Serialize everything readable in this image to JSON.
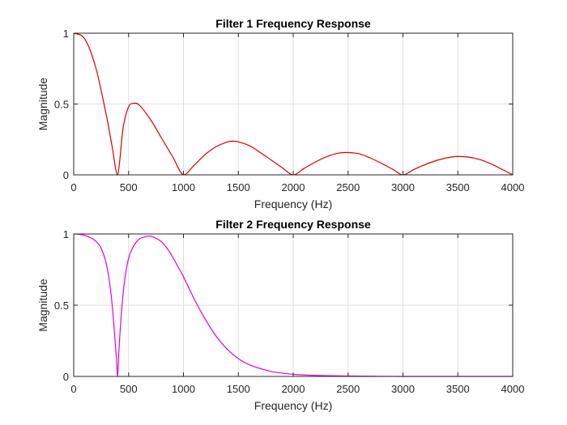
{
  "chart_data": [
    {
      "type": "line",
      "title": "Filter 1 Frequency Response",
      "xlabel": "Frequency (Hz)",
      "ylabel": "Magnitude",
      "xlim": [
        0,
        4000
      ],
      "ylim": [
        0,
        1
      ],
      "xticks": [
        0,
        500,
        1000,
        1500,
        2000,
        2500,
        3000,
        3500,
        4000
      ],
      "yticks": [
        0,
        0.5,
        1
      ],
      "ytick_labels": [
        "0",
        "0.5",
        "1"
      ],
      "grid": true,
      "series": [
        {
          "name": "Filter 1",
          "color": "#e00000",
          "x": [
            0,
            100,
            200,
            300,
            350,
            400,
            450,
            500,
            550,
            600,
            700,
            800,
            900,
            1000,
            1100,
            1200,
            1300,
            1400,
            1450,
            1500,
            1600,
            1700,
            1800,
            1900,
            2000,
            2100,
            2200,
            2300,
            2400,
            2480,
            2600,
            2700,
            2800,
            2900,
            3000,
            3100,
            3200,
            3300,
            3400,
            3500,
            3600,
            3700,
            3800,
            3900,
            4000
          ],
          "y": [
            1.0,
            0.96,
            0.76,
            0.41,
            0.2,
            0.0,
            0.33,
            0.48,
            0.505,
            0.49,
            0.39,
            0.26,
            0.13,
            0.0,
            0.07,
            0.145,
            0.2,
            0.232,
            0.237,
            0.233,
            0.206,
            0.158,
            0.104,
            0.05,
            0.0,
            0.046,
            0.09,
            0.127,
            0.151,
            0.158,
            0.149,
            0.12,
            0.083,
            0.042,
            0.0,
            0.038,
            0.072,
            0.1,
            0.12,
            0.13,
            0.125,
            0.108,
            0.078,
            0.04,
            0.0
          ]
        }
      ]
    },
    {
      "type": "line",
      "title": "Filter 2 Frequency Response",
      "xlabel": "Frequency (Hz)",
      "ylabel": "Magnitude",
      "xlim": [
        0,
        4000
      ],
      "ylim": [
        0,
        1
      ],
      "xticks": [
        0,
        500,
        1000,
        1500,
        2000,
        2500,
        3000,
        3500,
        4000
      ],
      "yticks": [
        0,
        0.5,
        1
      ],
      "ytick_labels": [
        "0",
        "0.5",
        "1"
      ],
      "grid": true,
      "series": [
        {
          "name": "Filter 2",
          "color": "#e600e6",
          "x": [
            0,
            50,
            100,
            150,
            200,
            250,
            300,
            340,
            370,
            390,
            400,
            410,
            430,
            460,
            500,
            550,
            600,
            650,
            700,
            750,
            800,
            850,
            900,
            950,
            1000,
            1100,
            1200,
            1300,
            1400,
            1500,
            1600,
            1800,
            2000,
            2200,
            2500,
            2800,
            3000,
            3500,
            4000
          ],
          "y": [
            1.0,
            0.998,
            0.99,
            0.975,
            0.95,
            0.9,
            0.78,
            0.58,
            0.32,
            0.12,
            0.0,
            0.15,
            0.4,
            0.65,
            0.83,
            0.92,
            0.965,
            0.98,
            0.985,
            0.97,
            0.945,
            0.9,
            0.84,
            0.77,
            0.7,
            0.54,
            0.4,
            0.28,
            0.19,
            0.125,
            0.082,
            0.035,
            0.015,
            0.007,
            0.003,
            0.001,
            0.0,
            0.0,
            0.0
          ]
        }
      ]
    }
  ]
}
